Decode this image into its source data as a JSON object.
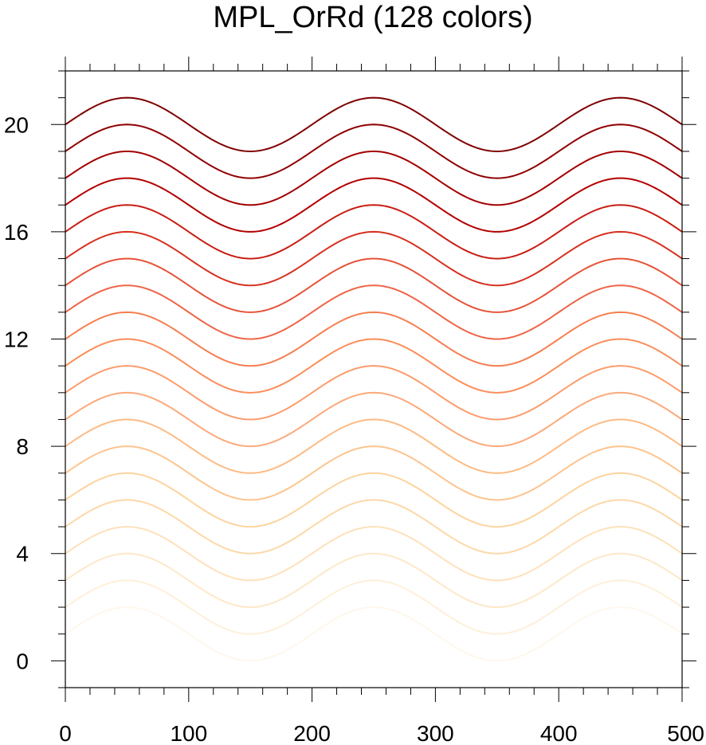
{
  "chart_data": {
    "type": "line",
    "title": "MPL_OrRd (128 colors)",
    "xlabel": "",
    "ylabel": "",
    "xlim": [
      0,
      500
    ],
    "ylim": [
      -1,
      22
    ],
    "xticks": [
      0,
      100,
      200,
      300,
      400,
      500
    ],
    "yticks": [
      0,
      4,
      8,
      12,
      16,
      20
    ],
    "x_minor_step": 20,
    "y_minor_step": 1,
    "grid": false,
    "curve": {
      "function": "offset + sin(2*pi*(x-0)/200)",
      "x_start": 0,
      "x_end": 500,
      "amplitude": 1,
      "period": 200
    },
    "series": [
      {
        "offset": 1,
        "color": "#fff7ec"
      },
      {
        "offset": 2,
        "color": "#fef0d9"
      },
      {
        "offset": 3,
        "color": "#fee8c8"
      },
      {
        "offset": 4,
        "color": "#fee1bb"
      },
      {
        "offset": 5,
        "color": "#fdd8a8"
      },
      {
        "offset": 6,
        "color": "#fdd49e"
      },
      {
        "offset": 7,
        "color": "#fdc48e"
      },
      {
        "offset": 8,
        "color": "#fdbb84"
      },
      {
        "offset": 9,
        "color": "#fca97a"
      },
      {
        "offset": 10,
        "color": "#fc9c6c"
      },
      {
        "offset": 11,
        "color": "#fc8d59"
      },
      {
        "offset": 12,
        "color": "#f67e50"
      },
      {
        "offset": 13,
        "color": "#ef6548"
      },
      {
        "offset": 14,
        "color": "#e65339"
      },
      {
        "offset": 15,
        "color": "#d7301f"
      },
      {
        "offset": 16,
        "color": "#c81d13"
      },
      {
        "offset": 17,
        "color": "#b30000"
      },
      {
        "offset": 18,
        "color": "#a30000"
      },
      {
        "offset": 19,
        "color": "#8f0000"
      },
      {
        "offset": 20,
        "color": "#7f0000"
      }
    ]
  }
}
